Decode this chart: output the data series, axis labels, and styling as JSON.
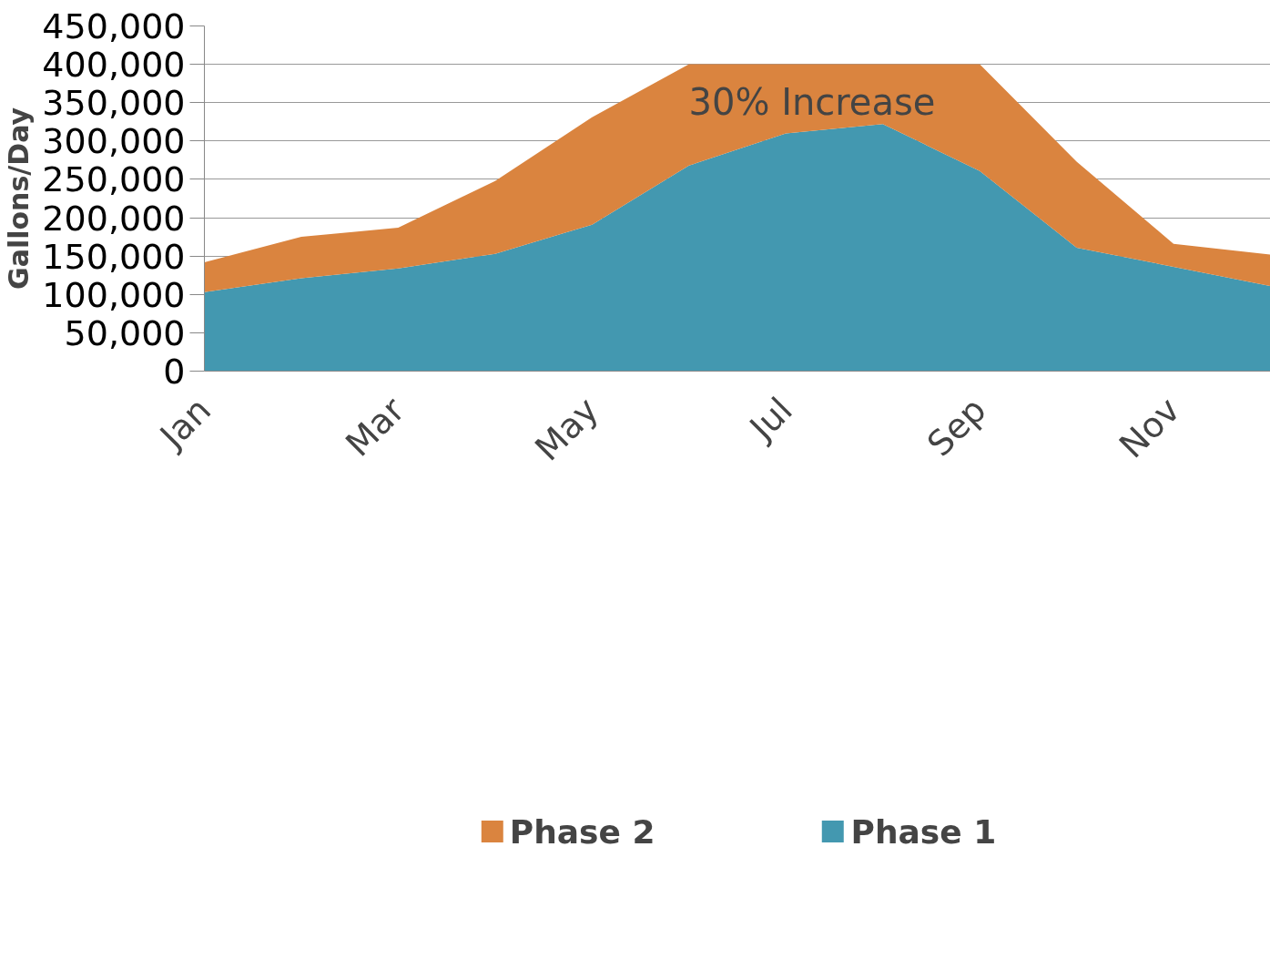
{
  "chart_data": {
    "type": "area",
    "stacked": true,
    "ylabel": "Gallons/Day",
    "categories": [
      "Jan",
      null,
      "Mar",
      null,
      "May",
      null,
      "Jul",
      null,
      "Sep",
      null,
      "Nov",
      null
    ],
    "series": [
      {
        "name": "Phase 1",
        "color": "#4398b0",
        "values": [
          103000,
          121000,
          134000,
          153000,
          191000,
          268000,
          310000,
          322000,
          261000,
          161000,
          136000,
          111000
        ]
      },
      {
        "name": "Phase 2",
        "color": "#da843f",
        "values": [
          39000,
          54000,
          53000,
          95000,
          140000,
          132000,
          90000,
          78000,
          139000,
          112000,
          30000,
          41000
        ]
      }
    ],
    "ylim": [
      0,
      450000
    ],
    "yticks": [
      {
        "value": 0,
        "label": "0"
      },
      {
        "value": 50000,
        "label": "50,000"
      },
      {
        "value": 100000,
        "label": "100,000"
      },
      {
        "value": 150000,
        "label": "150,000"
      },
      {
        "value": 200000,
        "label": "200,000"
      },
      {
        "value": 250000,
        "label": "250,000"
      },
      {
        "value": 300000,
        "label": "300,000"
      },
      {
        "value": 350000,
        "label": "350,000"
      },
      {
        "value": 400000,
        "label": "400,000"
      },
      {
        "value": 450000,
        "label": "450,000"
      }
    ],
    "grid": "y",
    "legend": "bottom",
    "annotations": [
      "30% Increase"
    ]
  }
}
